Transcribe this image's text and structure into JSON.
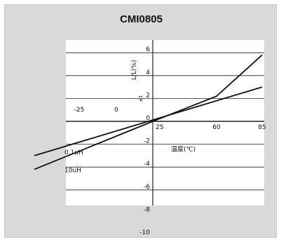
{
  "title": "CMI0805",
  "chart_data": {
    "type": "line",
    "title": "CMI0805",
    "ylabel": "L/L(%)",
    "ylabel_extra": "±1",
    "xlabel": "温度(℃)",
    "xlim": [
      -40,
      100
    ],
    "ylim": [
      -12,
      12
    ],
    "x_tick_labels": [
      {
        "value": -25,
        "label": "-25"
      },
      {
        "value": 0,
        "label": "0"
      },
      {
        "value": 25,
        "label": "25"
      },
      {
        "value": 60,
        "label": "60"
      },
      {
        "value": 85,
        "label": "85"
      }
    ],
    "y_tick_labels": [
      {
        "value": 6,
        "label": "6"
      },
      {
        "value": 4,
        "label": "4"
      },
      {
        "value": 2,
        "label": "2"
      },
      {
        "value": 0,
        "label": "0"
      },
      {
        "value": -2,
        "label": "-2"
      },
      {
        "value": -4,
        "label": "-4"
      },
      {
        "value": -6,
        "label": "-6"
      },
      {
        "value": -8,
        "label": "-8"
      },
      {
        "value": -10,
        "label": "-10"
      }
    ],
    "grid": {
      "horizontal": true,
      "vertical": false
    },
    "series": [
      {
        "name": "0.1uH",
        "x": [
          -40,
          85
        ],
        "y": [
          -3.0,
          3.0
        ]
      },
      {
        "name": "10uH",
        "x": [
          -40,
          25,
          60,
          85
        ],
        "y": [
          -4.2,
          0,
          2.2,
          5.8
        ]
      }
    ]
  }
}
